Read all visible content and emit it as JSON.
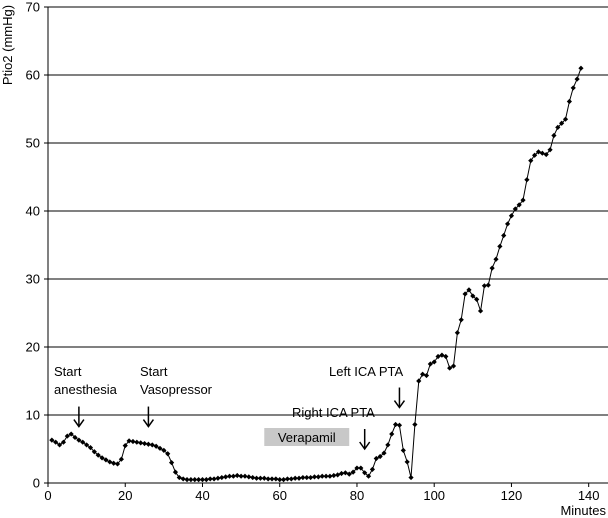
{
  "chart_data": {
    "type": "line",
    "title": "",
    "xlabel": "Minutes",
    "ylabel": "Ptio2 (mmHg)",
    "xlim": [
      0,
      145
    ],
    "ylim": [
      0,
      70
    ],
    "x_ticks": [
      "0",
      "20",
      "40",
      "60",
      "80",
      "100",
      "120",
      "140"
    ],
    "y_ticks": [
      "0",
      "10",
      "20",
      "30",
      "40",
      "50",
      "60",
      "70"
    ],
    "grid": "horizontal",
    "series": [
      {
        "marker": "diamond",
        "color": "#000000",
        "x": [
          1,
          2,
          3,
          4,
          5,
          6,
          7,
          8,
          9,
          10,
          11,
          12,
          13,
          14,
          15,
          16,
          17,
          18,
          19,
          20,
          21,
          22,
          23,
          24,
          25,
          26,
          27,
          28,
          29,
          30,
          31,
          32,
          33,
          34,
          35,
          36,
          37,
          38,
          39,
          40,
          41,
          42,
          43,
          44,
          45,
          46,
          47,
          48,
          49,
          50,
          51,
          52,
          53,
          54,
          55,
          56,
          57,
          58,
          59,
          60,
          61,
          62,
          63,
          64,
          65,
          66,
          67,
          68,
          69,
          70,
          71,
          72,
          73,
          74,
          75,
          76,
          77,
          78,
          79,
          80,
          81,
          82,
          83,
          84,
          85,
          86,
          87,
          88,
          89,
          90,
          91,
          92,
          93,
          94,
          95,
          96,
          97,
          98,
          99,
          100,
          101,
          102,
          103,
          104,
          105,
          106,
          107,
          108,
          109,
          110,
          111,
          112,
          113,
          114,
          115,
          116,
          117,
          118,
          119,
          120,
          121,
          122,
          123,
          124,
          125,
          126,
          127,
          128,
          129,
          130,
          131,
          132,
          133,
          134,
          135,
          136,
          137,
          138
        ],
        "y": [
          6.3,
          6.0,
          5.6,
          6.0,
          6.9,
          7.2,
          6.7,
          6.3,
          6.0,
          5.6,
          5.2,
          4.6,
          4.1,
          3.7,
          3.4,
          3.1,
          2.9,
          2.8,
          3.5,
          5.5,
          6.2,
          6.1,
          6.0,
          5.9,
          5.8,
          5.7,
          5.6,
          5.4,
          5.1,
          4.8,
          4.3,
          3.0,
          1.6,
          0.8,
          0.6,
          0.5,
          0.5,
          0.5,
          0.5,
          0.5,
          0.5,
          0.6,
          0.6,
          0.7,
          0.8,
          0.9,
          1.0,
          1.0,
          1.1,
          1.0,
          1.0,
          0.9,
          0.8,
          0.7,
          0.7,
          0.7,
          0.6,
          0.6,
          0.6,
          0.5,
          0.5,
          0.6,
          0.6,
          0.7,
          0.7,
          0.8,
          0.8,
          0.8,
          0.9,
          0.9,
          1.0,
          1.0,
          1.0,
          1.1,
          1.2,
          1.4,
          1.5,
          1.3,
          1.6,
          2.2,
          2.2,
          1.5,
          1.0,
          2.0,
          3.6,
          3.9,
          4.4,
          5.6,
          7.2,
          8.6,
          8.5,
          4.8,
          3.1,
          0.8,
          8.6,
          15.0,
          16.0,
          15.8,
          17.5,
          17.8,
          18.6,
          18.8,
          18.6,
          16.9,
          17.2,
          22.1,
          24.0,
          27.8,
          28.4,
          27.5,
          27.0,
          25.3,
          29.0,
          29.1,
          31.6,
          32.9,
          34.8,
          36.4,
          38.1,
          39.3,
          40.3,
          40.9,
          41.6,
          44.6,
          47.4,
          48.2,
          48.7,
          48.5,
          48.3,
          49.0,
          51.1,
          52.3,
          52.9,
          53.5,
          56.1,
          58.1,
          59.4,
          61.0
        ]
      }
    ],
    "annotations": [
      {
        "text": "Start",
        "x": 8,
        "arrow_y": 8.3
      },
      {
        "text": "anesthesia",
        "x": 8
      },
      {
        "text": "Start",
        "x": 26,
        "arrow_y": 8.3
      },
      {
        "text": "Vasopressor",
        "x": 26
      },
      {
        "text": "Left ICA PTA",
        "x": 91,
        "arrow_y": 11.1
      },
      {
        "text": "Right ICA PTA",
        "x": 82,
        "arrow_y": 5.0
      },
      {
        "text": "Verapamil",
        "x_start": 56,
        "x_end": 78,
        "shaded": true
      }
    ]
  }
}
